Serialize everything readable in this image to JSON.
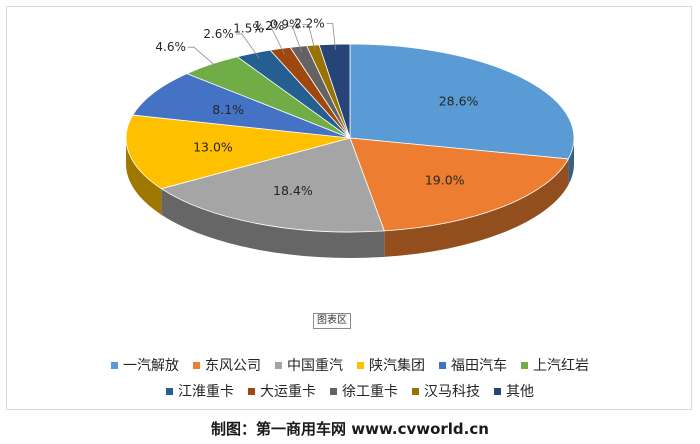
{
  "chart_data": {
    "type": "pie",
    "style": "3d",
    "categories": [
      "一汽解放",
      "东风公司",
      "中国重汽",
      "陕汽集团",
      "福田汽车",
      "上汽红岩",
      "江淮重卡",
      "大运重卡",
      "徐工重卡",
      "汉马科技",
      "其他"
    ],
    "values": [
      28.6,
      19.0,
      18.4,
      13.0,
      8.1,
      4.6,
      2.6,
      1.5,
      1.2,
      0.9,
      2.2
    ],
    "labels": [
      "28.6%",
      "19.0%",
      "18.4%",
      "13.0%",
      "8.1%",
      "4.6%",
      "2.6%",
      "1.5%",
      "1.2%",
      "0.9%",
      "2.2%"
    ],
    "colors": [
      "#5B9BD5",
      "#ED7D31",
      "#A5A5A5",
      "#FFC000",
      "#4472C4",
      "#70AD47",
      "#255E91",
      "#9E480E",
      "#636363",
      "#997300",
      "#264478"
    ],
    "legend": "bottom"
  },
  "plot_area_tag": "图表区",
  "footer": "制图：第一商用车网 www.cvworld.cn"
}
